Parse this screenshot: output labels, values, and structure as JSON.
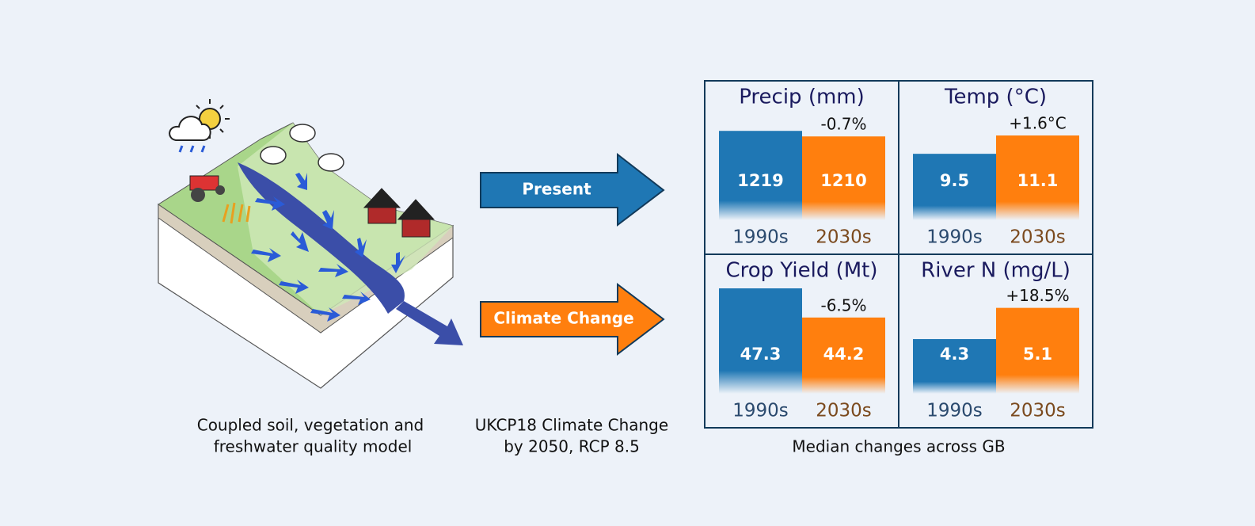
{
  "chart_data": [
    {
      "type": "bar",
      "title": "Precip (mm)",
      "categories": [
        "1990s",
        "2030s"
      ],
      "values": [
        1219,
        1210
      ],
      "annotation": "-0.7%",
      "colors": [
        "#1f77b4",
        "#ff7f0e"
      ],
      "label_colors": [
        "#2b4a6e",
        "#7b4a1e"
      ],
      "ylim": [
        1074,
        1245
      ]
    },
    {
      "type": "bar",
      "title": "Temp (°C)",
      "categories": [
        "1990s",
        "2030s"
      ],
      "values": [
        9.5,
        11.1
      ],
      "annotation": "+1.6°C",
      "colors": [
        "#1f77b4",
        "#ff7f0e"
      ],
      "label_colors": [
        "#2b4a6e",
        "#7b4a1e"
      ],
      "ylim": [
        3.7,
        12.9
      ]
    },
    {
      "type": "bar",
      "title": "Crop Yield (Mt)",
      "categories": [
        "1990s",
        "2030s"
      ],
      "values": [
        47.3,
        44.2
      ],
      "annotation": "-6.5%",
      "colors": [
        "#1f77b4",
        "#ff7f0e"
      ],
      "label_colors": [
        "#2b4a6e",
        "#7b4a1e"
      ],
      "ylim": [
        36.1,
        47.3
      ]
    },
    {
      "type": "bar",
      "title": "River N (mg/L)",
      "categories": [
        "1990s",
        "2030s"
      ],
      "values": [
        4.3,
        5.1
      ],
      "annotation": "+18.5%",
      "colors": [
        "#1f77b4",
        "#ff7f0e"
      ],
      "label_colors": [
        "#2b4a6e",
        "#7b4a1e"
      ],
      "ylim": [
        2.9,
        5.6
      ]
    }
  ],
  "model": {
    "caption": [
      "Coupled soil, vegetation and",
      "freshwater quality model"
    ]
  },
  "scenarios": {
    "present": "Present",
    "climate_change": "Climate Change",
    "caption": [
      "UKCP18 Climate Change",
      "by 2050, RCP 8.5"
    ]
  },
  "results": {
    "caption": "Median changes across GB"
  }
}
